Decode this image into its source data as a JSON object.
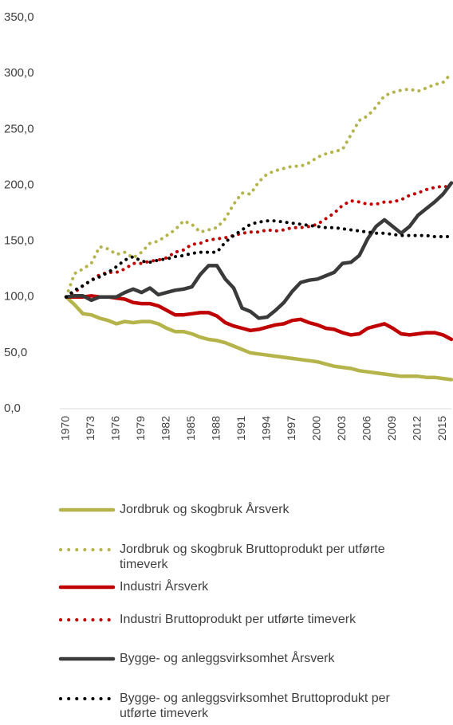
{
  "chart_data": {
    "type": "line",
    "categories": [
      "1970",
      null,
      null,
      "1973",
      null,
      null,
      "1976",
      null,
      null,
      "1979",
      null,
      null,
      "1982",
      null,
      null,
      "1985",
      null,
      null,
      "1988",
      null,
      null,
      "1991",
      null,
      null,
      "1994",
      null,
      null,
      "1997",
      null,
      null,
      "2000",
      null,
      null,
      "2003",
      null,
      null,
      "2006",
      null,
      null,
      "2009",
      null,
      null,
      "2012",
      null,
      null,
      "2015",
      null
    ],
    "ylim": [
      0,
      350
    ],
    "yticks": [
      {
        "value": 0,
        "label": "0,0"
      },
      {
        "value": 50,
        "label": "50,0"
      },
      {
        "value": 100,
        "label": "100,0"
      },
      {
        "value": 150,
        "label": "150,0"
      },
      {
        "value": 200,
        "label": "200,0"
      },
      {
        "value": 250,
        "label": "250,0"
      },
      {
        "value": 300,
        "label": "300,0"
      },
      {
        "value": 350,
        "label": "350,0"
      }
    ],
    "legend": "bottom",
    "series": [
      {
        "name": "Jordbruk og skogbruk Årsverk",
        "color": "#b5b44b",
        "dash": false,
        "values": [
          100,
          93,
          85,
          84,
          81,
          79,
          76,
          78,
          77,
          78,
          78,
          76,
          72,
          69,
          69,
          67,
          64,
          62,
          61,
          59,
          56,
          53,
          50,
          49,
          48,
          47,
          46,
          45,
          44,
          43,
          42,
          40,
          38,
          37,
          36,
          34,
          33,
          32,
          31,
          30,
          29,
          29,
          29,
          28,
          28,
          27,
          26
        ]
      },
      {
        "name": "Jordbruk og skogbruk Bruttoprodukt per utførte timeverk",
        "color": "#b5b44b",
        "dash": true,
        "values": [
          100,
          121,
          125,
          130,
          145,
          143,
          138,
          140,
          135,
          140,
          148,
          150,
          155,
          160,
          168,
          165,
          158,
          160,
          162,
          170,
          183,
          193,
          192,
          203,
          210,
          213,
          215,
          217,
          217,
          220,
          225,
          228,
          230,
          232,
          245,
          258,
          262,
          270,
          280,
          283,
          285,
          286,
          284,
          287,
          290,
          292,
          300
        ]
      },
      {
        "name": "Industri Årsverk",
        "color": "#c00000",
        "dash": false,
        "values": [
          100,
          100,
          100,
          101,
          100,
          100,
          99,
          98,
          95,
          94,
          94,
          92,
          88,
          84,
          84,
          85,
          86,
          86,
          83,
          77,
          74,
          72,
          70,
          71,
          73,
          75,
          76,
          79,
          80,
          77,
          75,
          72,
          71,
          68,
          66,
          67,
          72,
          74,
          76,
          72,
          67,
          66,
          67,
          68,
          68,
          66,
          62
        ]
      },
      {
        "name": "Industri Bruttoprodukt per utførte timeverk",
        "color": "#c00000",
        "dash": true,
        "values": [
          100,
          104,
          110,
          115,
          120,
          122,
          122,
          125,
          130,
          130,
          132,
          133,
          135,
          140,
          142,
          147,
          148,
          151,
          152,
          153,
          155,
          157,
          158,
          158,
          160,
          159,
          160,
          162,
          162,
          163,
          165,
          170,
          175,
          182,
          186,
          185,
          183,
          183,
          185,
          185,
          187,
          191,
          193,
          196,
          198,
          199,
          198
        ]
      },
      {
        "name": "Bygge- og anleggsvirksomhet Årsverk",
        "color": "#3a3a3a",
        "dash": false,
        "values": [
          100,
          101,
          101,
          97,
          100,
          100,
          100,
          104,
          107,
          104,
          108,
          102,
          104,
          106,
          107,
          109,
          120,
          128,
          128,
          116,
          108,
          90,
          87,
          81,
          82,
          88,
          95,
          105,
          113,
          115,
          116,
          119,
          122,
          130,
          131,
          137,
          152,
          163,
          169,
          163,
          157,
          163,
          173,
          179,
          185,
          192,
          202
        ]
      },
      {
        "name": "Bygge- og anleggsvirksomhet Bruttoprodukt per utførte timeverk",
        "color": "#000000",
        "dash": true,
        "values": [
          100,
          106,
          110,
          115,
          118,
          122,
          127,
          133,
          136,
          132,
          131,
          133,
          134,
          136,
          137,
          139,
          140,
          140,
          140,
          149,
          155,
          160,
          165,
          167,
          168,
          168,
          167,
          166,
          165,
          164,
          163,
          162,
          162,
          161,
          160,
          159,
          158,
          157,
          157,
          156,
          155,
          155,
          155,
          155,
          154,
          154,
          154
        ]
      }
    ]
  }
}
